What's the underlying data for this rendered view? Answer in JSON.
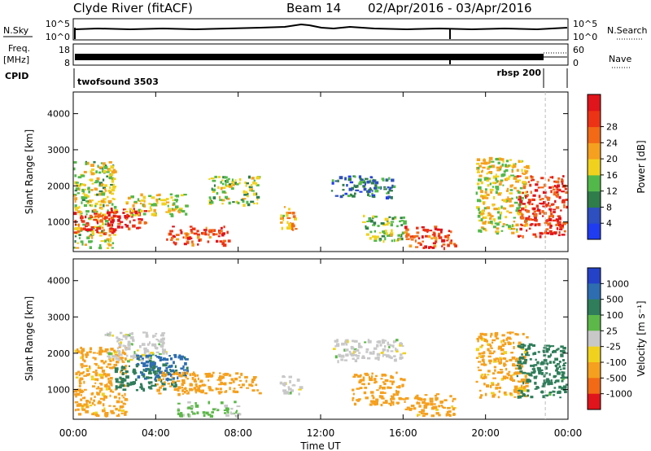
{
  "header": {
    "site": "Clyde River (fitACF)",
    "beam": "Beam 14",
    "date_range": "02/Apr/2016 - 03/Apr/2016"
  },
  "strips": {
    "nsky_label": "N.Sky",
    "nsky_ticks": [
      "10^5",
      "10^0"
    ],
    "nsearch_label": "N.Search",
    "freq_label": "Freq.",
    "freq_unit": "[MHz]",
    "freq_ticks": [
      "18",
      "8"
    ],
    "nave_ticks": [
      "60",
      "0"
    ],
    "nave_label": "Nave",
    "cpid_label": "CPID",
    "cpid_entries": [
      {
        "name": "twofsound 3503",
        "start_hour": 0.0,
        "end_hour": 22.9
      },
      {
        "name": "rbsp 200",
        "start_hour": 22.9,
        "end_hour": 24.0
      }
    ]
  },
  "axes": {
    "ylabel": "Slant Range [km]",
    "yticks": [
      "1000",
      "2000",
      "3000",
      "4000"
    ],
    "xticks": [
      "00:00",
      "04:00",
      "08:00",
      "12:00",
      "16:00",
      "20:00",
      "00:00"
    ],
    "xlabel": "Time UT"
  },
  "colorbars": {
    "power": {
      "label": "Power [dB]",
      "ticks": [
        "4",
        "8",
        "12",
        "16",
        "20",
        "24",
        "28"
      ],
      "colors": [
        "#1f3cf0",
        "#2d4fbf",
        "#2f7d4a",
        "#53b84a",
        "#f0d21e",
        "#f5a01e",
        "#f26a16",
        "#ec3315",
        "#e0141b"
      ]
    },
    "velocity": {
      "label": "Velocity [m s⁻¹]",
      "ticks": [
        "1000",
        "500",
        "100",
        "25",
        "-25",
        "-100",
        "-500",
        "-1000"
      ],
      "colors": [
        "#2442c8",
        "#2d6db0",
        "#2f7d5a",
        "#5cb848",
        "#c8c8c8",
        "#f0d21e",
        "#f5a01e",
        "#f26a16",
        "#e0141b"
      ]
    }
  },
  "chart_data": [
    {
      "type": "heatmap",
      "name": "Power [dB]",
      "x_unit": "hours UT",
      "y_unit": "km",
      "xlim": [
        0,
        24
      ],
      "ylim": [
        180,
        4600
      ],
      "zlim": [
        0,
        30
      ],
      "regions": [
        {
          "t0": 0.0,
          "t1": 2.0,
          "r0": 300,
          "r1": 2700,
          "z": 14
        },
        {
          "t0": 0.0,
          "t1": 2.0,
          "r0": 700,
          "r1": 1300,
          "z": 26
        },
        {
          "t0": 1.5,
          "t1": 3.5,
          "r0": 800,
          "r1": 1400,
          "z": 25
        },
        {
          "t0": 2.5,
          "t1": 5.5,
          "r0": 1200,
          "r1": 1800,
          "z": 15
        },
        {
          "t0": 4.5,
          "t1": 7.5,
          "r0": 400,
          "r1": 900,
          "z": 24
        },
        {
          "t0": 6.5,
          "t1": 9.0,
          "r0": 1500,
          "r1": 2300,
          "z": 13
        },
        {
          "t0": 10.0,
          "t1": 10.8,
          "r0": 800,
          "r1": 1500,
          "z": 18
        },
        {
          "t0": 12.5,
          "t1": 15.5,
          "r0": 1700,
          "r1": 2300,
          "z": 7
        },
        {
          "t0": 14.0,
          "t1": 16.0,
          "r0": 500,
          "r1": 1200,
          "z": 12
        },
        {
          "t0": 16.0,
          "t1": 18.5,
          "r0": 300,
          "r1": 900,
          "z": 24
        },
        {
          "t0": 19.5,
          "t1": 22.0,
          "r0": 700,
          "r1": 2800,
          "z": 15
        },
        {
          "t0": 21.5,
          "t1": 24.0,
          "r0": 600,
          "r1": 2300,
          "z": 25
        }
      ]
    },
    {
      "type": "heatmap",
      "name": "Velocity",
      "x_unit": "hours UT",
      "y_unit": "km",
      "xlim": [
        0,
        24
      ],
      "ylim": [
        180,
        4600
      ],
      "zlim": [
        -1000,
        1000
      ],
      "regions": [
        {
          "t0": 0.0,
          "t1": 2.5,
          "r0": 300,
          "r1": 2200,
          "z": -150
        },
        {
          "t0": 1.5,
          "t1": 4.5,
          "r0": 1800,
          "r1": 2600,
          "z": 0
        },
        {
          "t0": 2.0,
          "t1": 5.0,
          "r0": 1000,
          "r1": 1700,
          "z": 200
        },
        {
          "t0": 3.0,
          "t1": 5.5,
          "r0": 1300,
          "r1": 2000,
          "z": 700
        },
        {
          "t0": 4.0,
          "t1": 9.0,
          "r0": 900,
          "r1": 1500,
          "z": -200
        },
        {
          "t0": 5.0,
          "t1": 8.0,
          "r0": 300,
          "r1": 700,
          "z": 40
        },
        {
          "t0": 10.0,
          "t1": 11.0,
          "r0": 900,
          "r1": 1400,
          "z": 0
        },
        {
          "t0": 12.5,
          "t1": 16.0,
          "r0": 1800,
          "r1": 2400,
          "z": 0
        },
        {
          "t0": 13.5,
          "t1": 16.0,
          "r0": 600,
          "r1": 1500,
          "z": -200
        },
        {
          "t0": 16.0,
          "t1": 18.5,
          "r0": 300,
          "r1": 900,
          "z": -150
        },
        {
          "t0": 19.5,
          "t1": 22.0,
          "r0": 800,
          "r1": 2600,
          "z": -150
        },
        {
          "t0": 21.5,
          "t1": 24.0,
          "r0": 800,
          "r1": 2300,
          "z": 200
        }
      ]
    }
  ]
}
